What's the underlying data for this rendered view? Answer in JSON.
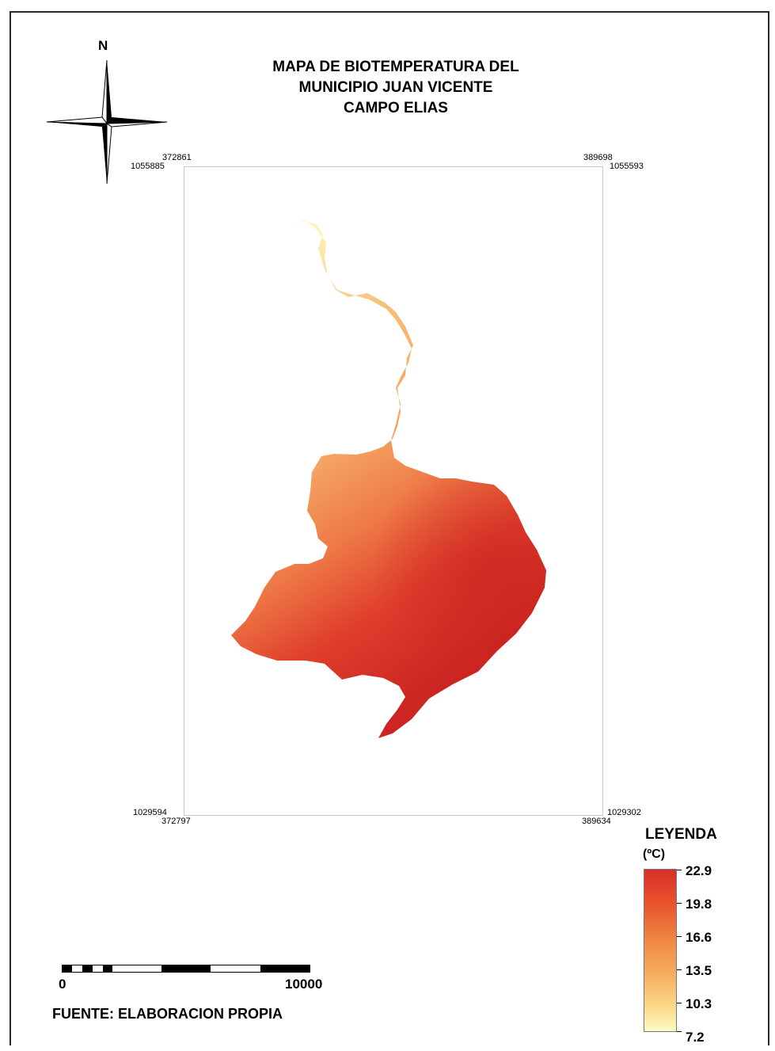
{
  "map": {
    "title_lines": [
      "MAPA DE BIOTEMPERATURA DEL",
      "MUNICIPIO JUAN VICENTE",
      "CAMPO ELIAS"
    ],
    "north_label": "N",
    "coords": {
      "top_left_x": "372861",
      "top_left_y": "1055885",
      "top_right_x": "389698",
      "top_right_y": "1055593",
      "bottom_left_y": "1029594",
      "bottom_left_x": "372797",
      "bottom_right_y": "1029302",
      "bottom_right_x": "389634"
    },
    "legend": {
      "title": "LEYENDA",
      "unit": "(ºC)",
      "values": [
        "22.9",
        "19.8",
        "16.6",
        "13.5",
        "10.3",
        "7.2"
      ],
      "colors": [
        "#d7302a",
        "#e8552e",
        "#f08a45",
        "#f6ae60",
        "#fbd98a",
        "#fefbc8"
      ]
    },
    "scale": {
      "start_label": "0",
      "end_label": "10000"
    },
    "source": "FUENTE: ELABORACION PROPIA"
  }
}
